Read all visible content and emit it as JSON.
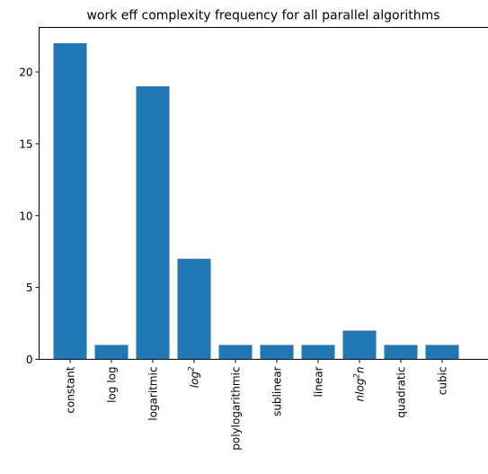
{
  "chart_data": {
    "type": "bar",
    "title": "work eff complexity frequency for all parallel algorithms",
    "xlabel": "",
    "ylabel": "",
    "categories": [
      {
        "label": "constant"
      },
      {
        "label": "log log"
      },
      {
        "label": "logaritmic"
      },
      {
        "label": "log",
        "sup": "2",
        "italic": true
      },
      {
        "label": "polylogarithmic"
      },
      {
        "label": "sublinear"
      },
      {
        "label": "linear"
      },
      {
        "label": "nlog",
        "sup": "2",
        "suffix": "n",
        "italic": true
      },
      {
        "label": "quadratic"
      },
      {
        "label": "cubic"
      }
    ],
    "values": [
      22,
      1,
      19,
      7,
      1,
      1,
      1,
      2,
      1,
      1
    ],
    "ylim": [
      0,
      23.1
    ],
    "yticks": [
      0,
      5,
      10,
      15,
      20
    ],
    "grid": false,
    "bar_color": "#1f77b4"
  }
}
